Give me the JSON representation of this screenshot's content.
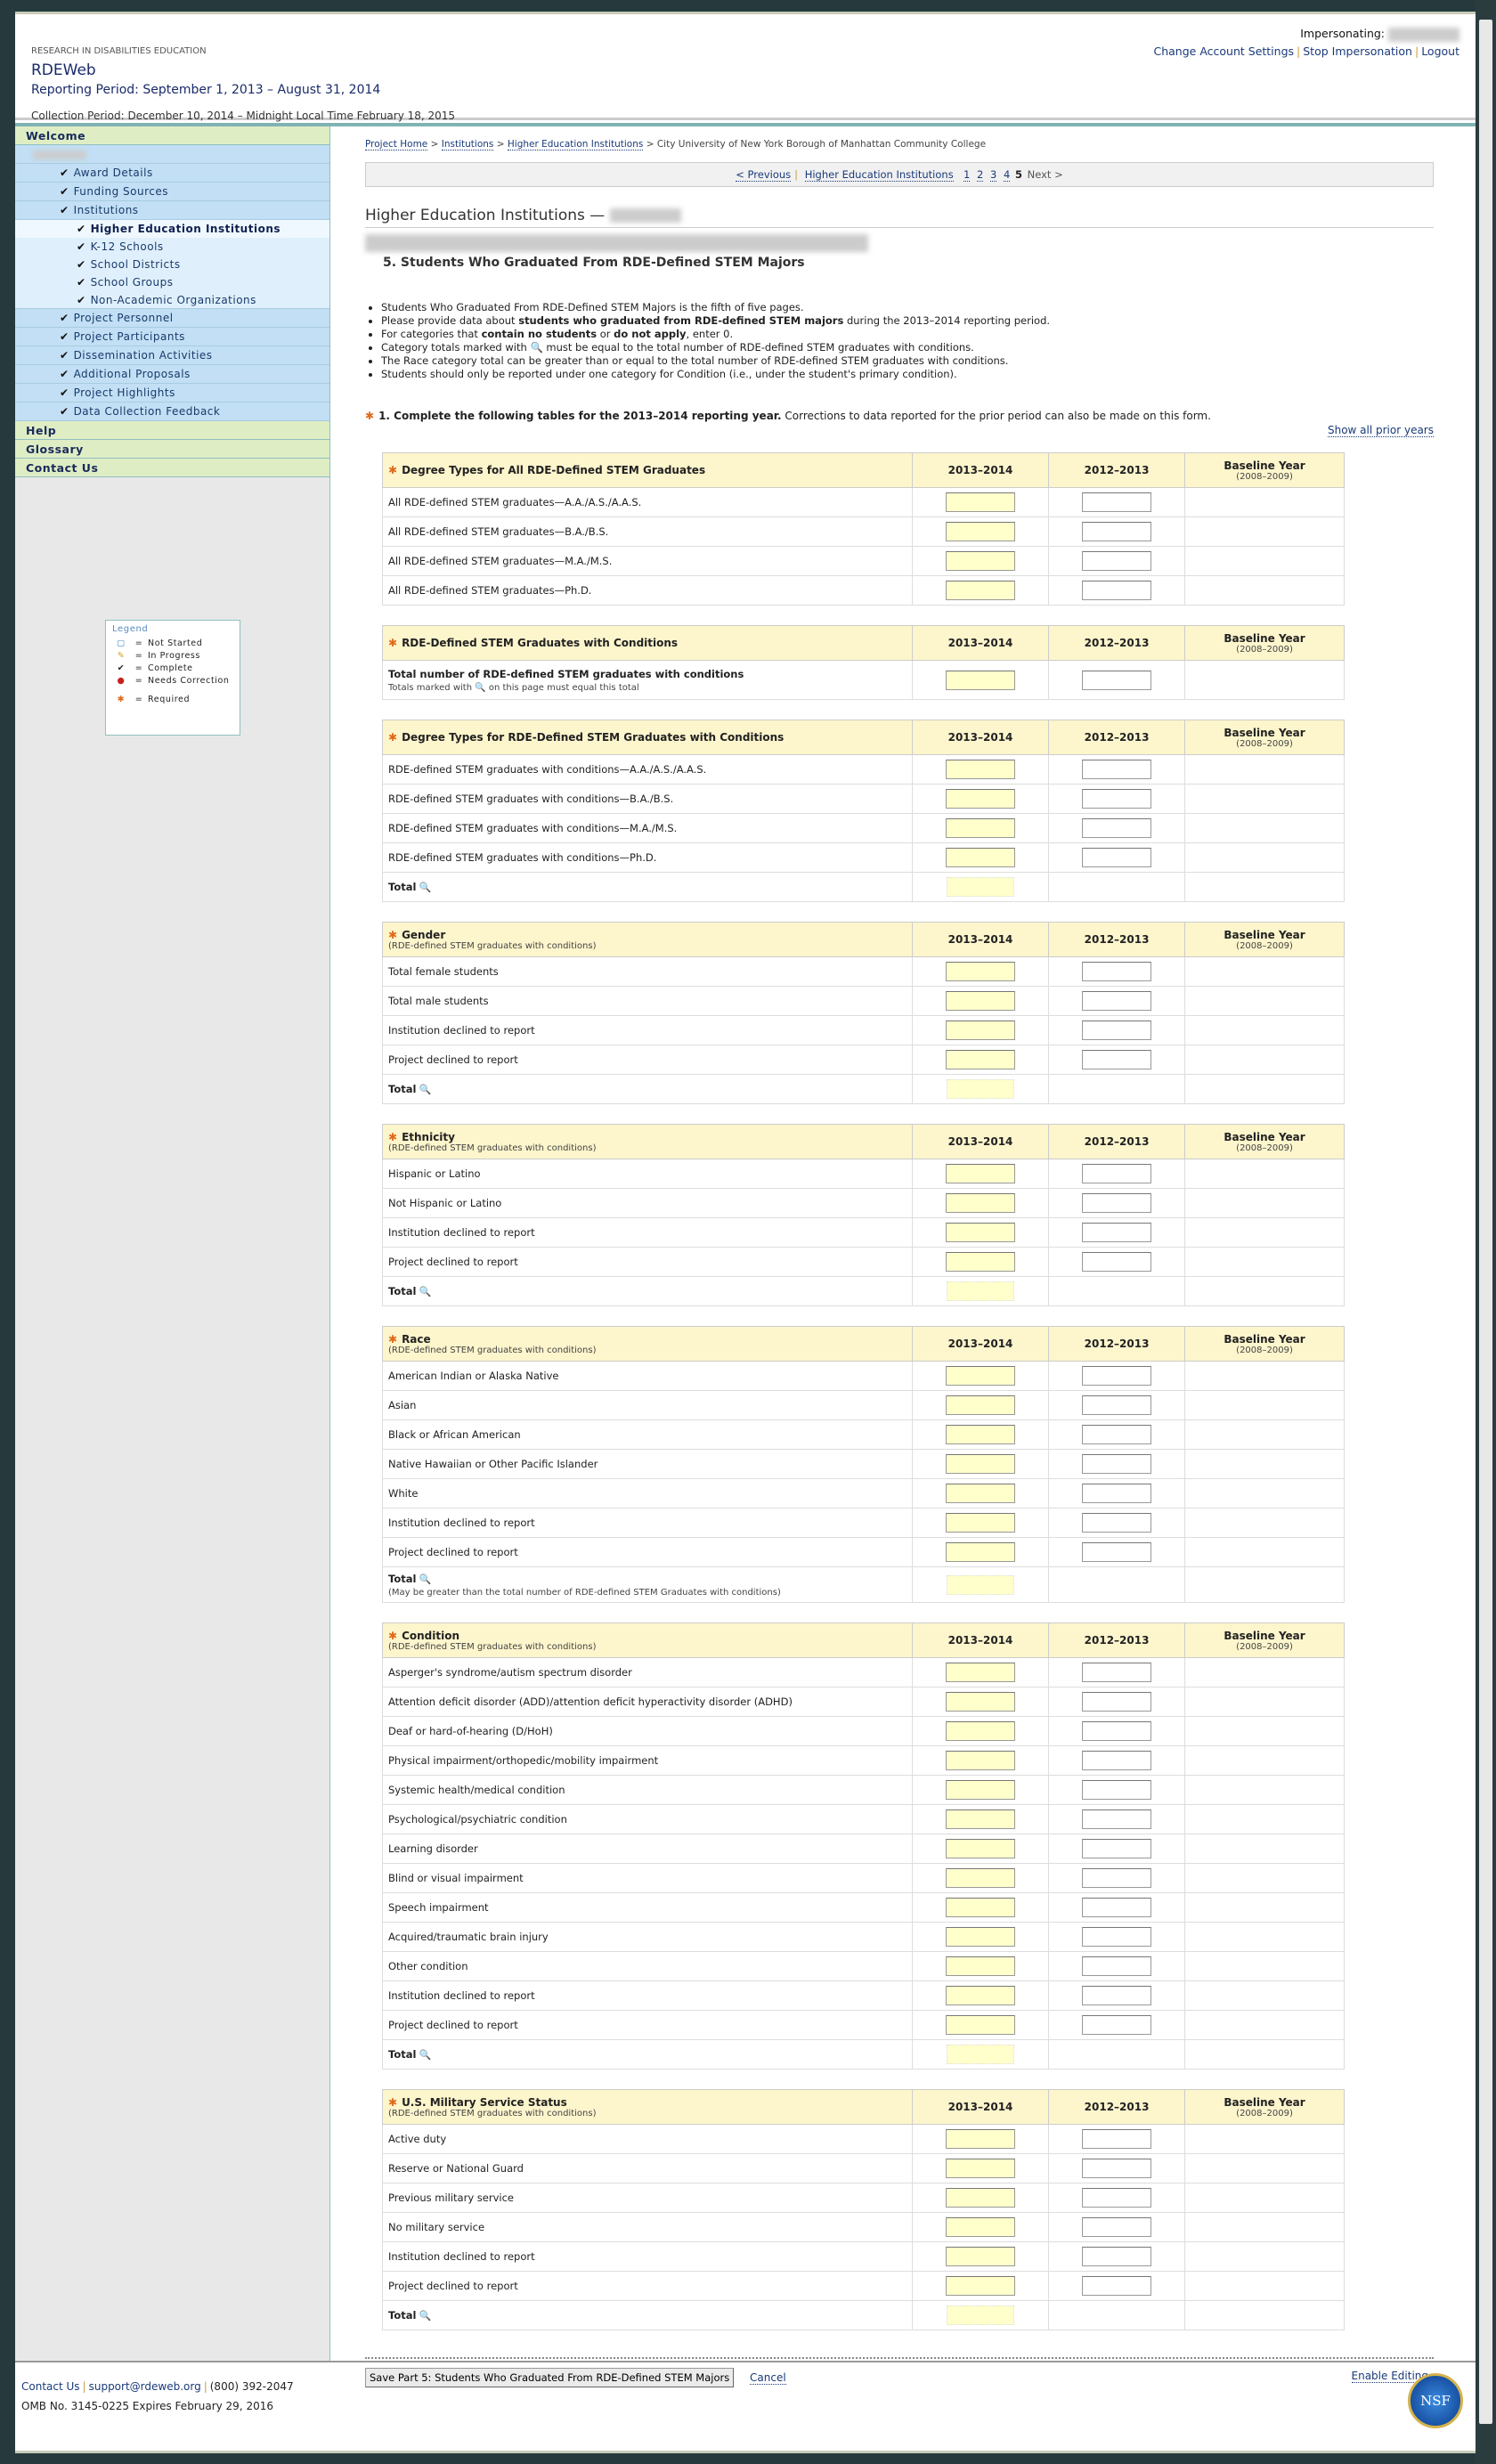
{
  "header": {
    "org": "RESEARCH IN DISABILITIES EDUCATION",
    "app": "RDEWeb",
    "reporting_period": "Reporting Period: September 1, 2013 – August 31, 2014",
    "collection_period": "Collection Period: December 10, 2014 – Midnight Local Time February 18, 2015",
    "impersonating_label": "Impersonating:",
    "links": [
      "Change Account Settings",
      "Stop Impersonation",
      "Logout"
    ]
  },
  "sidebar": {
    "welcome": "Welcome",
    "items": [
      "Award Details",
      "Funding Sources",
      "Institutions"
    ],
    "subitems": [
      "Higher Education Institutions",
      "K-12 Schools",
      "School Districts",
      "School Groups",
      "Non-Academic Organizations"
    ],
    "items2": [
      "Project Personnel",
      "Project Participants",
      "Dissemination Activities",
      "Additional Proposals",
      "Project Highlights",
      "Data Collection Feedback"
    ],
    "bottom": [
      "Help",
      "Glossary",
      "Contact Us"
    ],
    "legend": {
      "title": "Legend",
      "entries": [
        {
          "icon": "not-started-icon",
          "label": "Not Started"
        },
        {
          "icon": "pencil-icon",
          "label": "In Progress"
        },
        {
          "icon": "check-icon",
          "label": "Complete"
        },
        {
          "icon": "error-icon",
          "label": "Needs Correction"
        },
        {
          "icon": "required-star-icon",
          "label": "Required"
        }
      ]
    }
  },
  "breadcrumb": [
    "Project Home",
    "Institutions",
    "Higher Education Institutions",
    "City University of New York Borough of Manhattan Community College"
  ],
  "pager": {
    "previous": "< Previous",
    "section": "Higher Education Institutions",
    "pages": [
      "1",
      "2",
      "3",
      "4"
    ],
    "current": "5",
    "next": "Next >"
  },
  "title": "Higher Education Institutions —",
  "section_title": "5. Students Who Graduated From RDE-Defined STEM Majors",
  "bullets": [
    "Students Who Graduated From RDE-Defined STEM Majors is the fifth of five pages.",
    "Please provide data about students who graduated from RDE-defined STEM majors during the 2013–2014 reporting period.",
    "For categories that contain no students or do not apply, enter 0.",
    "Category totals marked with 🔍 must be equal to the total number of RDE-defined STEM graduates with conditions.",
    "The Race category total can be greater than or equal to the total number of RDE-defined STEM graduates with conditions.",
    "Students should only be reported under one category for Condition (i.e., under the student's primary condition)."
  ],
  "instruction": {
    "bold": "1. Complete the following tables for the 2013–2014 reporting year.",
    "rest": " Corrections to data reported for the prior period can also be made on this form."
  },
  "show_all": "Show all prior years",
  "columns": {
    "y1": "2013–2014",
    "y2": "2012–2013",
    "base": "Baseline Year",
    "base_sub": "(2008–2009)"
  },
  "total_label": "Total",
  "tables": [
    {
      "title": "Degree Types for All RDE-Defined STEM Graduates",
      "subtitle": "",
      "rows": [
        "All RDE-defined STEM graduates—A.A./A.S./A.A.S.",
        "All RDE-defined STEM graduates—B.A./B.S.",
        "All RDE-defined STEM graduates—M.A./M.S.",
        "All RDE-defined STEM graduates—Ph.D."
      ],
      "total": false
    },
    {
      "title": "RDE-Defined STEM Graduates with Conditions",
      "subtitle": "",
      "rows": [],
      "special": {
        "label": "Total number of RDE-defined STEM graduates with conditions",
        "note": "Totals marked with 🔍 on this page must equal this total"
      },
      "total": false
    },
    {
      "title": "Degree Types for RDE-Defined STEM Graduates with Conditions",
      "subtitle": "",
      "rows": [
        "RDE-defined STEM graduates with conditions—A.A./A.S./A.A.S.",
        "RDE-defined STEM graduates with conditions—B.A./B.S.",
        "RDE-defined STEM graduates with conditions—M.A./M.S.",
        "RDE-defined STEM graduates with conditions—Ph.D."
      ],
      "total": true
    },
    {
      "title": "Gender",
      "subtitle": "(RDE-defined STEM graduates with conditions)",
      "rows": [
        "Total female students",
        "Total male students",
        "Institution declined to report",
        "Project declined to report"
      ],
      "total": true
    },
    {
      "title": "Ethnicity",
      "subtitle": "(RDE-defined STEM graduates with conditions)",
      "rows": [
        "Hispanic or Latino",
        "Not Hispanic or Latino",
        "Institution declined to report",
        "Project declined to report"
      ],
      "total": true
    },
    {
      "title": "Race",
      "subtitle": "(RDE-defined STEM graduates with conditions)",
      "rows": [
        "American Indian or Alaska Native",
        "Asian",
        "Black or African American",
        "Native Hawaiian or Other Pacific Islander",
        "White",
        "Institution declined to report",
        "Project declined to report"
      ],
      "total": true,
      "total_note": "(May be greater than the total number of RDE-defined STEM Graduates with conditions)"
    },
    {
      "title": "Condition",
      "subtitle": "(RDE-defined STEM graduates with conditions)",
      "rows": [
        "Asperger's syndrome/autism spectrum disorder",
        "Attention deficit disorder (ADD)/attention deficit hyperactivity disorder (ADHD)",
        "Deaf or hard-of-hearing (D/HoH)",
        "Physical impairment/orthopedic/mobility impairment",
        "Systemic health/medical condition",
        "Psychological/psychiatric condition",
        "Learning disorder",
        "Blind or visual impairment",
        "Speech impairment",
        "Acquired/traumatic brain injury",
        "Other condition",
        "Institution declined to report",
        "Project declined to report"
      ],
      "total": true
    },
    {
      "title": "U.S. Military Service Status",
      "subtitle": "(RDE-defined STEM graduates with conditions)",
      "rows": [
        "Active duty",
        "Reserve or National Guard",
        "Previous military service",
        "No military service",
        "Institution declined to report",
        "Project declined to report"
      ],
      "total": true
    }
  ],
  "actions": {
    "save": "Save Part 5: Students Who Graduated From RDE-Defined STEM Majors",
    "cancel": "Cancel",
    "enable": "Enable Editing"
  },
  "footer": {
    "contact": "Contact Us",
    "email": "support@rdeweb.org",
    "phone": "(800) 392-2047",
    "omb": "OMB No. 3145-0225 Expires February 29, 2016",
    "logo": "NSF"
  }
}
